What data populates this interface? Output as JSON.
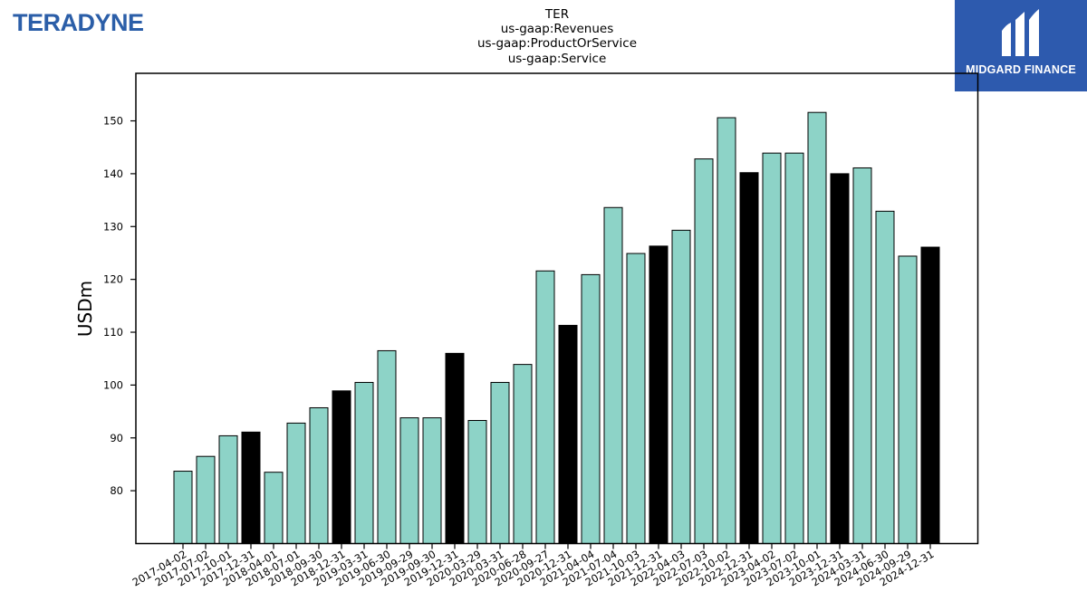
{
  "logos": {
    "left_text": "TERADYNE",
    "right_text": "MIDGARD FINANCE"
  },
  "colors": {
    "bar_default": "#8dd3c7",
    "bar_highlight": "#000000",
    "edge": "#000000",
    "brand_blue": "#2d5aae"
  },
  "chart_data": {
    "type": "bar",
    "title": [
      "TER",
      "us-gaap:Revenues",
      "us-gaap:ProductOrService",
      "us-gaap:Service"
    ],
    "xlabel": "",
    "ylabel": "USDm",
    "ylim": [
      70,
      159
    ],
    "yticks": [
      80,
      90,
      100,
      110,
      120,
      130,
      140,
      150
    ],
    "grid": false,
    "categories": [
      "2017-04-02",
      "2017-07-02",
      "2017-10-01",
      "2017-12-31",
      "2018-04-01",
      "2018-07-01",
      "2018-09-30",
      "2018-12-31",
      "2019-03-31",
      "2019-06-30",
      "2019-09-29",
      "2019-09-30",
      "2019-12-31",
      "2020-03-29",
      "2020-03-31",
      "2020-06-28",
      "2020-09-27",
      "2020-12-31",
      "2021-04-04",
      "2021-07-04",
      "2021-10-03",
      "2021-12-31",
      "2022-04-03",
      "2022-07-03",
      "2022-10-02",
      "2022-12-31",
      "2023-04-02",
      "2023-07-02",
      "2023-10-01",
      "2023-12-31",
      "2024-03-31",
      "2024-06-30",
      "2024-09-29",
      "2024-12-31"
    ],
    "values": [
      83.7,
      86.5,
      90.4,
      91.1,
      83.5,
      92.8,
      95.7,
      98.9,
      100.5,
      106.5,
      93.8,
      93.8,
      106.0,
      93.3,
      100.5,
      103.9,
      121.6,
      111.3,
      120.9,
      133.6,
      124.9,
      126.3,
      129.3,
      142.8,
      150.6,
      140.2,
      143.9,
      143.9,
      151.6,
      140.0,
      141.1,
      132.9,
      124.4,
      126.1
    ],
    "highlighted": [
      false,
      false,
      false,
      true,
      false,
      false,
      false,
      true,
      false,
      false,
      false,
      false,
      true,
      false,
      false,
      false,
      false,
      true,
      false,
      false,
      false,
      true,
      false,
      false,
      false,
      true,
      false,
      false,
      false,
      true,
      false,
      false,
      false,
      true
    ]
  }
}
